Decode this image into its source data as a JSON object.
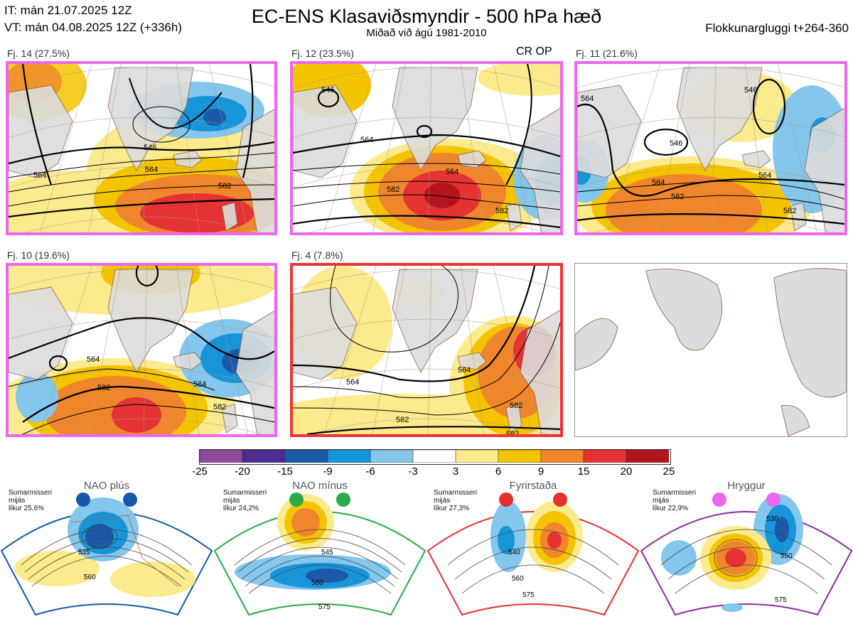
{
  "header": {
    "it_line": "IT: mán 21.07.2025 12Z",
    "vt_line": "VT: mán 04.08.2025 12Z  (+336h)",
    "title": "EC-ENS Klasaviðsmyndir - 500 hPa hæð",
    "subtitle": "Miðað við ágú 1981-2010",
    "window": "Flokkunargluggi t+264-360"
  },
  "panels": [
    {
      "label": "Fj. 14 (27.5%)",
      "frame_color": "#ee66ee",
      "tag": "",
      "contour_labels": [
        "546",
        "564",
        "582",
        "564",
        "564"
      ]
    },
    {
      "label": "Fj. 12 (23.5%)",
      "frame_color": "#ee66ee",
      "tag": "CR OP",
      "contour_labels": [
        "546",
        "564",
        "564",
        "582",
        "582"
      ]
    },
    {
      "label": "Fj. 11 (21.6%)",
      "frame_color": "#ee66ee",
      "tag": "",
      "contour_labels": [
        "564",
        "546",
        "546",
        "564",
        "582",
        "582",
        "564"
      ]
    },
    {
      "label": "Fj. 10 (19.6%)",
      "frame_color": "#ee66ee",
      "tag": "",
      "contour_labels": [
        "564",
        "582",
        "564",
        "582"
      ]
    },
    {
      "label": "Fj. 4 (7.8%)",
      "frame_color": "#ee3333",
      "tag": "",
      "contour_labels": [
        "564",
        "564",
        "582",
        "582",
        "582"
      ]
    }
  ],
  "colorbar": {
    "ticks": [
      "-25",
      "-20",
      "-15",
      "-9",
      "-6",
      "-3",
      "3",
      "6",
      "9",
      "15",
      "20",
      "25"
    ],
    "colors": [
      "#8e4a9e",
      "#4a2d8f",
      "#1a5aa8",
      "#1795d8",
      "#84c6ec",
      "#ffffff",
      "#fbeb8d",
      "#f5c400",
      "#f0862c",
      "#e53333",
      "#b4141e"
    ]
  },
  "regimes": [
    {
      "title": "NAO plús",
      "season": "Sumarmisseri",
      "stat": "mijás",
      "prob": "líkur 25,6%",
      "color": "#1559a8",
      "contours": [
        "535",
        "560"
      ]
    },
    {
      "title": "NAO mínus",
      "season": "Sumarmisseri",
      "stat": "mijás",
      "prob": "líkur 24,2%",
      "color": "#2aaa4a",
      "contours": [
        "545",
        "560",
        "575"
      ]
    },
    {
      "title": "Fyrirstaða",
      "season": "Sumarmisseri",
      "stat": "mijás",
      "prob": "líkur 27,3%",
      "color": "#e53030",
      "contours": [
        "540",
        "560",
        "575"
      ]
    },
    {
      "title": "Hryggur",
      "season": "Sumarmisseri",
      "stat": "mijás",
      "prob": "líkur 22,9%",
      "color": "#ea66ea",
      "contours": [
        "530",
        "550",
        "575"
      ]
    }
  ]
}
